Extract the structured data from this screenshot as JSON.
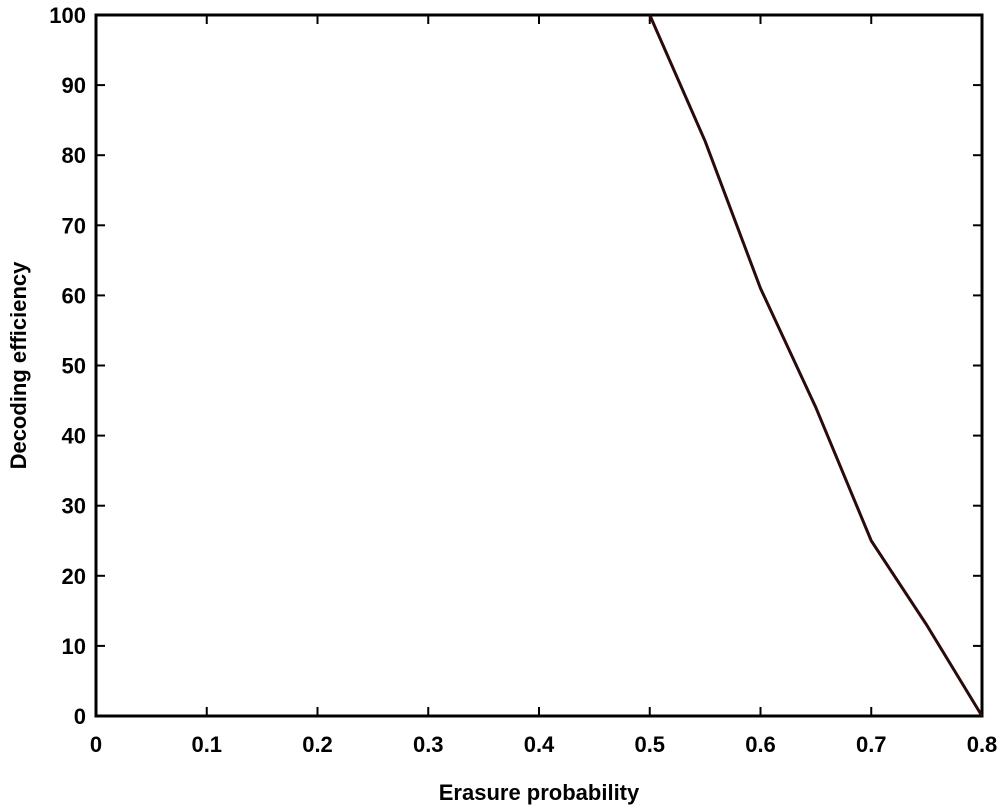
{
  "chart_data": {
    "type": "line",
    "title": "",
    "xlabel": "Erasure probability",
    "ylabel": "Decoding efficiency",
    "xlim": [
      0,
      0.8
    ],
    "ylim": [
      0,
      100
    ],
    "x_ticks": [
      "0",
      "0.1",
      "0.2",
      "0.3",
      "0.4",
      "0.5",
      "0.6",
      "0.7",
      "0.8"
    ],
    "y_ticks": [
      "0",
      "10",
      "20",
      "30",
      "40",
      "50",
      "60",
      "70",
      "80",
      "90",
      "100"
    ],
    "grid": false,
    "series": [
      {
        "x": [
          0.5,
          0.55,
          0.6,
          0.65,
          0.7,
          0.75,
          0.8
        ],
        "y": [
          100,
          82,
          61,
          44,
          25,
          13,
          0
        ]
      }
    ],
    "colors": {
      "line": "#2a0a0a",
      "axis": "#000000"
    }
  }
}
